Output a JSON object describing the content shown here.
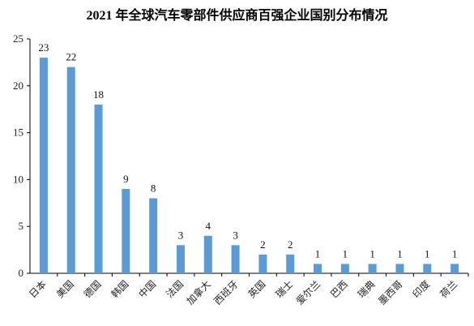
{
  "chart_data": {
    "type": "bar",
    "title": "2021 年全球汽车零部件供应商百强企业国别分布情况",
    "categories": [
      "日本",
      "美国",
      "德国",
      "韩国",
      "中国",
      "法国",
      "加拿大",
      "西班牙",
      "英国",
      "瑞士",
      "爱尔兰",
      "巴西",
      "瑞典",
      "墨西哥",
      "印度",
      "荷兰"
    ],
    "values": [
      23,
      22,
      18,
      9,
      8,
      3,
      4,
      3,
      2,
      2,
      1,
      1,
      1,
      1,
      1,
      1
    ],
    "xlabel": "",
    "ylabel": "",
    "ylim": [
      0,
      25
    ],
    "yticks": [
      "0",
      "5",
      "10",
      "15",
      "20",
      "25"
    ],
    "bar_color": "#5b9bd5",
    "grid": false,
    "legend": "none"
  }
}
